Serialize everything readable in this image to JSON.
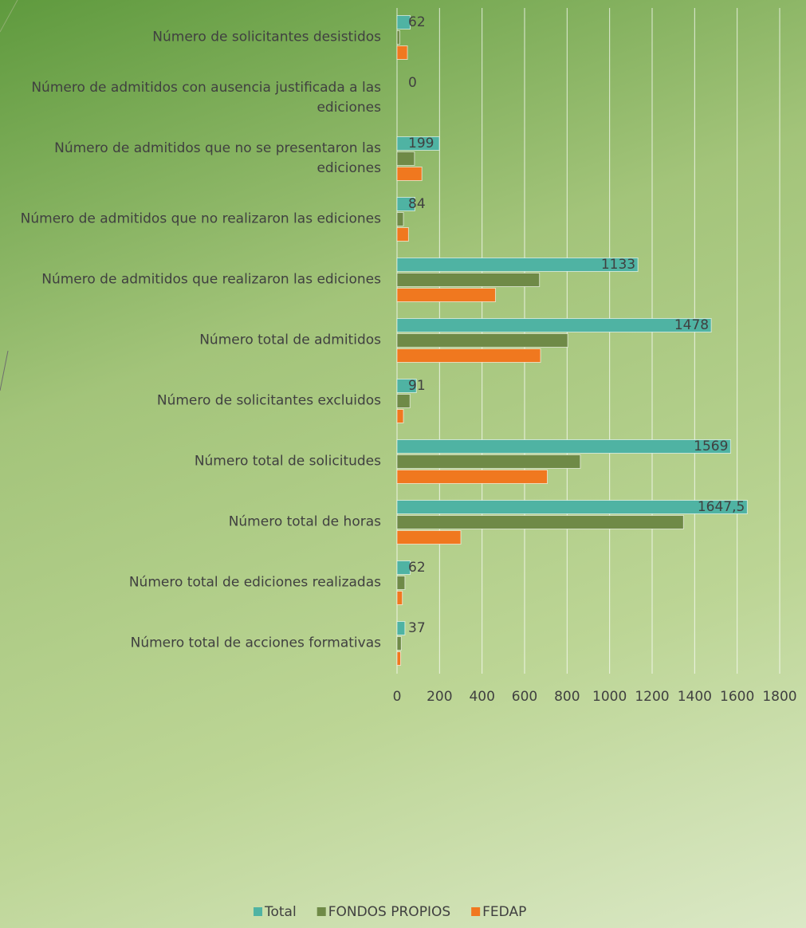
{
  "chart_data": {
    "type": "hbar",
    "categories": [
      "Número de solicitantes desistidos",
      "Número de admitidos con ausencia justificada a las ediciones",
      "Número de admitidos que no se presentaron las ediciones",
      "Número de admitidos que no realizaron las ediciones",
      "Número de admitidos que realizaron las ediciones",
      "Número total de admitidos",
      "Número de solicitantes excluidos",
      "Número total de solicitudes",
      "Número total de horas",
      "Número total de ediciones realizadas",
      "Número total de acciones formativas"
    ],
    "series": [
      {
        "name": "Total",
        "color": "#4fb3a3",
        "values": [
          62,
          0,
          199,
          84,
          1133,
          1478,
          91,
          1569,
          1647.5,
          62,
          37
        ],
        "value_labels": [
          "62",
          "0",
          "199",
          "84",
          "1133",
          "1478",
          "91",
          "1569",
          "1647,5",
          "62",
          "37"
        ]
      },
      {
        "name": "FONDOS PROPIOS",
        "color": "#6f8a47",
        "values": [
          13,
          0,
          82,
          30,
          670,
          803,
          61,
          862,
          1347.5,
          37,
          20
        ]
      },
      {
        "name": "FEDAP",
        "color": "#f0781f",
        "values": [
          49,
          0,
          117,
          54,
          463,
          675,
          30,
          707,
          300,
          25,
          17
        ]
      }
    ],
    "xlim": [
      0,
      1800
    ],
    "xticks": [
      0,
      200,
      400,
      600,
      800,
      1000,
      1200,
      1400,
      1600,
      1800
    ],
    "grid": true,
    "legend": "bottom"
  }
}
